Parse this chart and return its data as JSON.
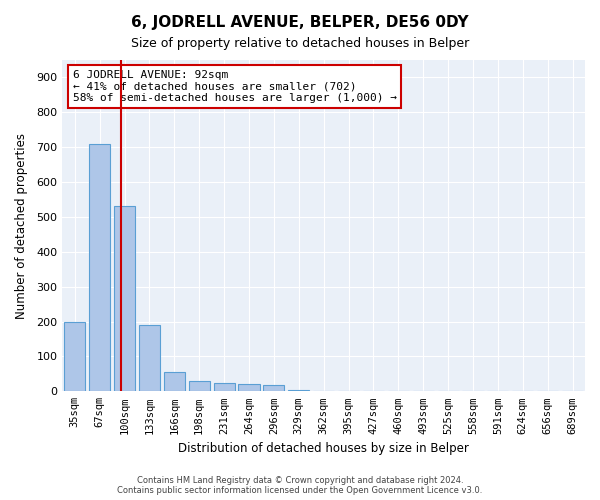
{
  "title": "6, JODRELL AVENUE, BELPER, DE56 0DY",
  "subtitle": "Size of property relative to detached houses in Belper",
  "xlabel": "Distribution of detached houses by size in Belper",
  "ylabel": "Number of detached properties",
  "categories": [
    "35sqm",
    "67sqm",
    "100sqm",
    "133sqm",
    "166sqm",
    "198sqm",
    "231sqm",
    "264sqm",
    "296sqm",
    "329sqm",
    "362sqm",
    "395sqm",
    "427sqm",
    "460sqm",
    "493sqm",
    "525sqm",
    "558sqm",
    "591sqm",
    "624sqm",
    "656sqm",
    "689sqm"
  ],
  "values": [
    200,
    710,
    530,
    190,
    55,
    30,
    25,
    22,
    18,
    5,
    0,
    0,
    0,
    0,
    0,
    0,
    0,
    0,
    0,
    0,
    0
  ],
  "bar_color": "#aec6e8",
  "bar_edge_color": "#5a9fd4",
  "red_line_x": 2,
  "annotation_text": "6 JODRELL AVENUE: 92sqm\n← 41% of detached houses are smaller (702)\n58% of semi-detached houses are larger (1,000) →",
  "annotation_box_color": "#ffffff",
  "annotation_border_color": "#cc0000",
  "footer": "Contains HM Land Registry data © Crown copyright and database right 2024.\nContains public sector information licensed under the Open Government Licence v3.0.",
  "ylim": [
    0,
    950
  ],
  "yticks": [
    0,
    100,
    200,
    300,
    400,
    500,
    600,
    700,
    800,
    900
  ],
  "bg_color": "#eaf0f8",
  "grid_color": "#ffffff"
}
